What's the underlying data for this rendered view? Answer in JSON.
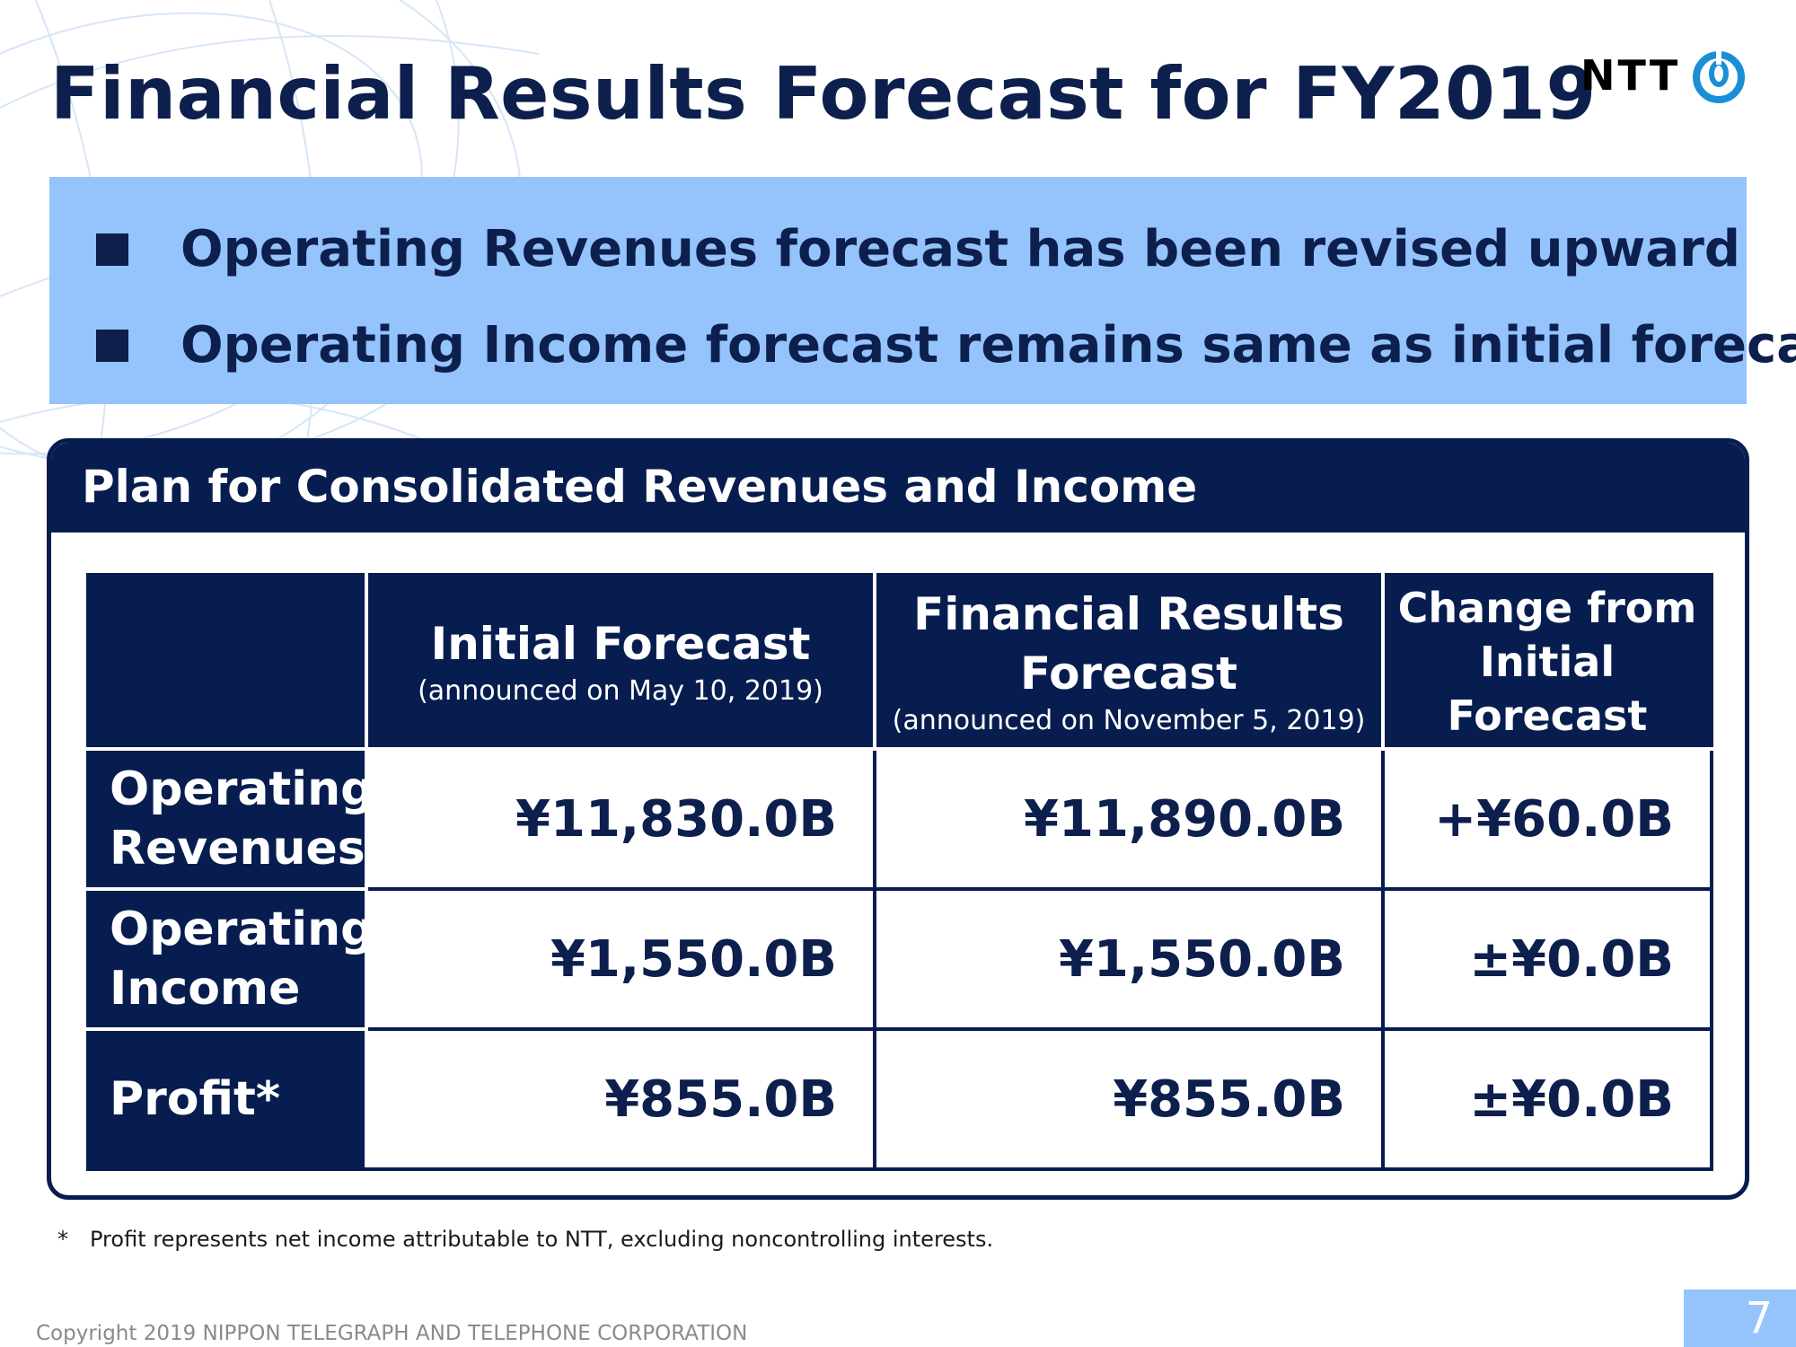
{
  "slide": {
    "title": "Financial Results Forecast for FY2019",
    "logo_text": "NTT",
    "logo_icon": "ntt-swirl-logo-icon",
    "page_number": "7",
    "copyright": "Copyright 2019 NIPPON TELEGRAPH AND TELEPHONE CORPORATION"
  },
  "bullets": [
    "Operating Revenues forecast has been revised upward",
    "Operating Income forecast remains same as initial forecast"
  ],
  "panel": {
    "title": "Plan for Consolidated Revenues and Income"
  },
  "table": {
    "columns": [
      {
        "title": "Initial Forecast",
        "subtitle": "(announced on May 10, 2019)"
      },
      {
        "title_line1": "Financial Results",
        "title_line2": "Forecast",
        "subtitle": "(announced on November 5, 2019)"
      },
      {
        "title_line1": "Change from",
        "title_line2": "Initial Forecast"
      }
    ],
    "rows": [
      {
        "label_line1": "Operating",
        "label_line2": "Revenues",
        "initial": "¥11,830.0B",
        "results": "¥11,890.0B",
        "change": "+¥60.0B"
      },
      {
        "label_line1": "Operating",
        "label_line2": "Income",
        "initial": "¥1,550.0B",
        "results": "¥1,550.0B",
        "change": "±¥0.0B"
      },
      {
        "label_line1": "Profit*",
        "initial": "¥855.0B",
        "results": "¥855.0B",
        "change": "±¥0.0B"
      }
    ]
  },
  "footnote": {
    "marker": "*",
    "text": "Profit represents net income attributable to NTT, excluding noncontrolling interests."
  },
  "colors": {
    "navy": "#071d4f",
    "text_navy": "#0d1f4d",
    "light_blue": "#95c3fc",
    "logo_blue": "#1a8fd6"
  }
}
